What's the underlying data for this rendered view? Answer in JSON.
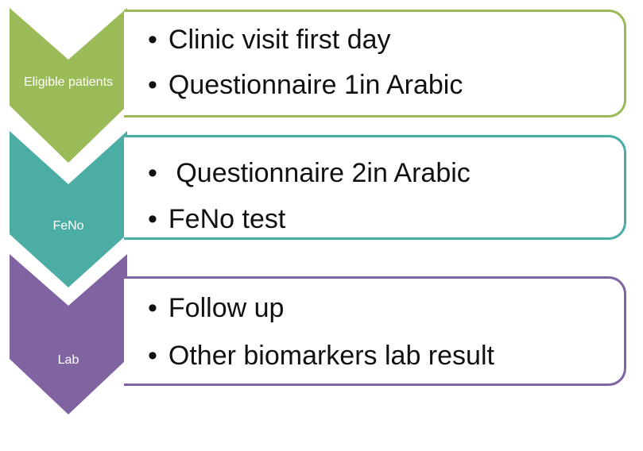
{
  "steps": [
    {
      "label": "Eligible patients",
      "color": "#9bbb59",
      "items": [
        "Clinic visit first day",
        "Questionnaire 1in Arabic"
      ]
    },
    {
      "label": "FeNo",
      "color": "#4bada3",
      "items": [
        " Questionnaire 2in Arabic",
        "FeNo test"
      ]
    },
    {
      "label": "Lab",
      "color": "#8064a2",
      "items": [
        "Follow up",
        "Other biomarkers lab result"
      ]
    }
  ]
}
